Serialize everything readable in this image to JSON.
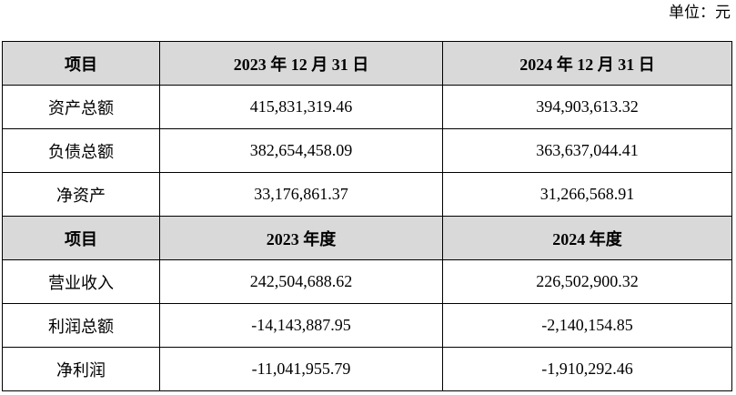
{
  "unit_label": "单位：元",
  "header1": [
    "项目",
    "2023 年 12 月 31 日",
    "2024 年 12 月 31 日"
  ],
  "rows1": [
    [
      "资产总额",
      "415,831,319.46",
      "394,903,613.32"
    ],
    [
      "负债总额",
      "382,654,458.09",
      "363,637,044.41"
    ],
    [
      "净资产",
      "33,176,861.37",
      "31,266,568.91"
    ]
  ],
  "header2": [
    "项目",
    "2023 年度",
    "2024 年度"
  ],
  "rows2": [
    [
      "营业收入",
      "242,504,688.62",
      "226,502,900.32"
    ],
    [
      "利润总额",
      "-14,143,887.95",
      "-2,140,154.85"
    ],
    [
      "净利润",
      "-11,041,955.79",
      "-1,910,292.46"
    ]
  ]
}
